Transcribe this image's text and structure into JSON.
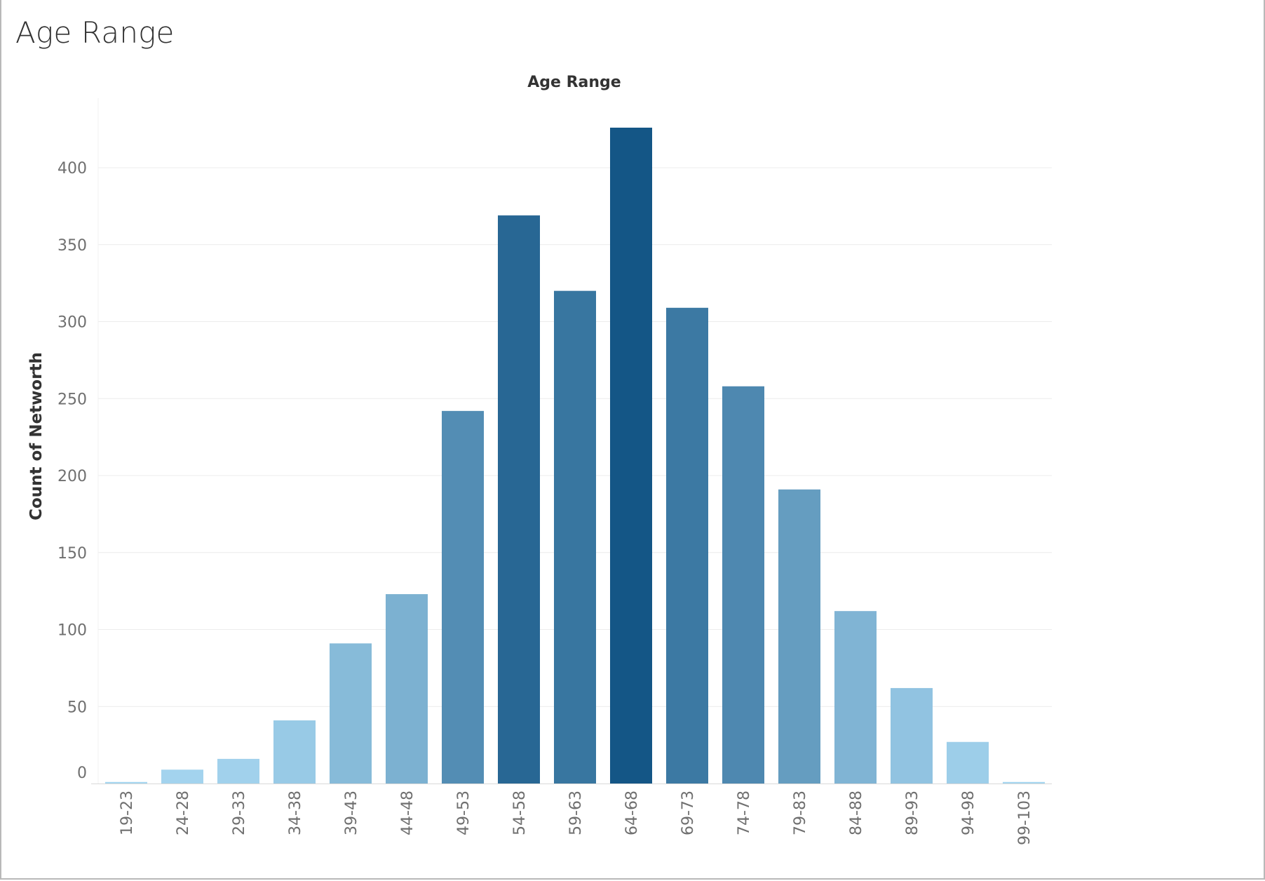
{
  "sheet": {
    "title": "Age Range"
  },
  "chart_data": {
    "type": "bar",
    "title": "Age Range",
    "xlabel": "",
    "ylabel": "Count of Networth",
    "categories": [
      "19-23",
      "24-28",
      "29-33",
      "34-38",
      "39-43",
      "44-48",
      "49-53",
      "54-58",
      "59-63",
      "64-68",
      "69-73",
      "74-78",
      "79-83",
      "84-88",
      "89-93",
      "94-98",
      "99-103"
    ],
    "values": [
      1,
      9,
      16,
      41,
      91,
      123,
      242,
      369,
      320,
      426,
      309,
      258,
      191,
      112,
      62,
      27,
      1
    ],
    "ylim": [
      0,
      426
    ],
    "yticks": [
      0,
      50,
      100,
      150,
      200,
      250,
      300,
      350,
      400
    ],
    "grid": true,
    "legend": "none",
    "colors": {
      "light": "#a6d6f0",
      "dark": "#145686",
      "gridline": "#ececec",
      "axis": "#d9d9d9"
    }
  }
}
